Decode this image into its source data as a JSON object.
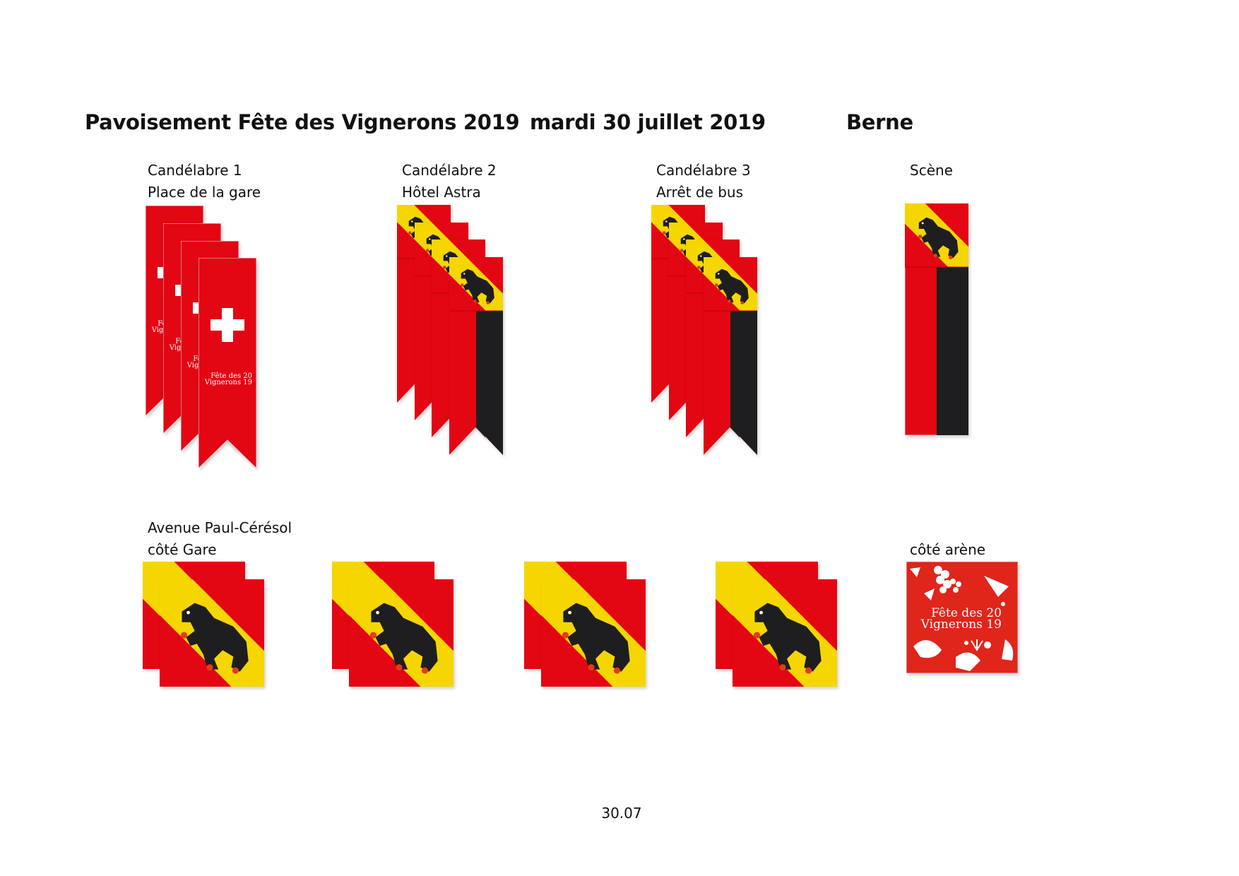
{
  "header": {
    "title": "Pavoisement Fête des Vignerons 2019",
    "date": "mardi 30 juillet 2019",
    "canton": "Berne"
  },
  "locations": [
    {
      "line1": "Candélabre 1",
      "line2": "Place de la gare",
      "flag": "swiss-banner"
    },
    {
      "line1": "Candélabre 2",
      "line2": "Hôtel Astra",
      "flag": "bern-banner"
    },
    {
      "line1": "Candélabre 3",
      "line2": "Arrêt de bus",
      "flag": "bern-banner"
    },
    {
      "line1": "Scène",
      "line2": "",
      "flag": "bern-vertical-banner"
    }
  ],
  "avenue": {
    "line1": "Avenue Paul-Cérésol",
    "line2": "côté Gare",
    "flag": "bern-square-flag"
  },
  "arena": {
    "label": "côté arène",
    "flag": "fete-des-vignerons-square-flag"
  },
  "logo_text": {
    "line1": "Fête des 20",
    "line2": "Vignerons 19"
  },
  "colors": {
    "red": "#e30613",
    "yellow": "#f6d600",
    "black": "#1e1e20",
    "arena_red": "#e0251b"
  },
  "footer": "30.07"
}
